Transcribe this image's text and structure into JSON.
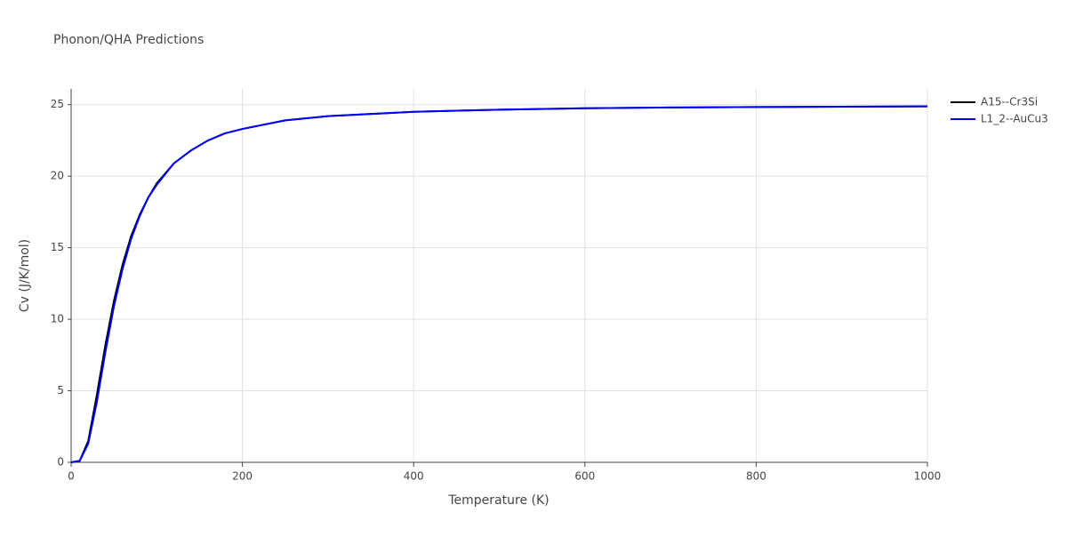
{
  "chart_data": {
    "type": "line",
    "title": "Phonon/QHA Predictions",
    "x_label": "Temperature (K)",
    "y_label": "Cv (J/K/mol)",
    "x": [
      0,
      10,
      20,
      30,
      40,
      50,
      60,
      70,
      80,
      90,
      100,
      120,
      140,
      160,
      180,
      200,
      250,
      300,
      400,
      500,
      600,
      700,
      800,
      900,
      1000
    ],
    "series": [
      {
        "name": "A15--Cr3Si",
        "color": "#000000",
        "values": [
          0,
          0.1,
          1.5,
          4.7,
          8.2,
          11.3,
          13.8,
          15.8,
          17.3,
          18.5,
          19.5,
          20.9,
          21.8,
          22.5,
          23.0,
          23.3,
          23.9,
          24.2,
          24.5,
          24.65,
          24.75,
          24.8,
          24.83,
          24.86,
          24.88
        ]
      },
      {
        "name": "L1_2--AuCu3",
        "color": "#0000ff",
        "values": [
          0,
          0.1,
          1.3,
          4.2,
          7.7,
          10.9,
          13.5,
          15.6,
          17.2,
          18.5,
          19.4,
          20.9,
          21.8,
          22.5,
          23.0,
          23.3,
          23.9,
          24.2,
          24.5,
          24.65,
          24.75,
          24.8,
          24.83,
          24.86,
          24.88
        ]
      }
    ],
    "xlim": [
      0,
      1000
    ],
    "xticks": [
      0,
      200,
      400,
      600,
      800,
      1000
    ],
    "ylim": [
      0,
      26.1
    ],
    "yticks": [
      0,
      5,
      10,
      15,
      20,
      25
    ],
    "grid": true,
    "legend": "right"
  }
}
